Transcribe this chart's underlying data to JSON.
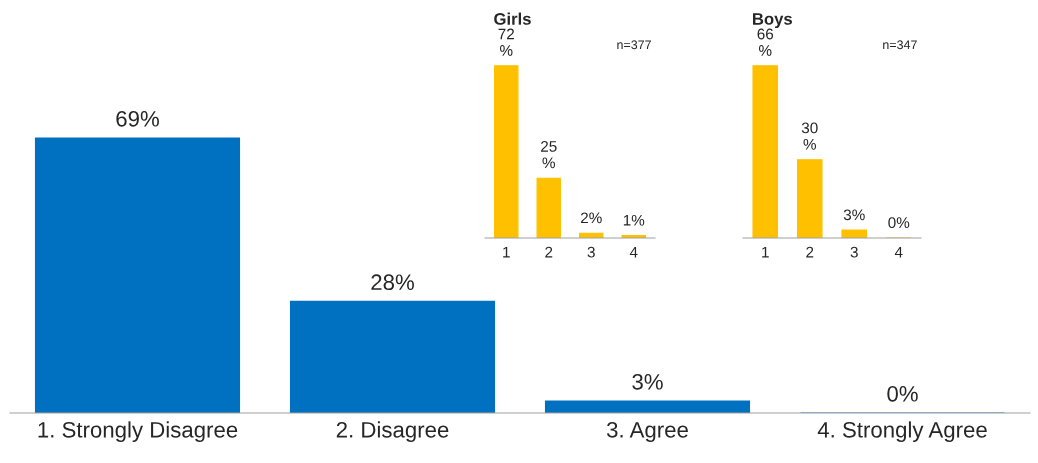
{
  "chart_data": [
    {
      "type": "bar",
      "categories": [
        "1. Strongly Disagree",
        "2. Disagree",
        "3. Agree",
        "4. Strongly Agree"
      ],
      "values": [
        69,
        28,
        3,
        0
      ],
      "value_labels": [
        "69%",
        "28%",
        "3%",
        "0%"
      ],
      "color": "#0070c0",
      "grid": false,
      "legend": false
    },
    {
      "type": "bar",
      "title": "Girls",
      "annotations": [
        "n=377"
      ],
      "categories": [
        "1",
        "2",
        "3",
        "4"
      ],
      "values": [
        72,
        25,
        2,
        1
      ],
      "value_labels": [
        "72 %",
        "25 %",
        "2%",
        "1%"
      ],
      "color": "#ffc000",
      "grid": false,
      "legend": false
    },
    {
      "type": "bar",
      "title": "Boys",
      "annotations": [
        "n=347"
      ],
      "categories": [
        "1",
        "2",
        "3",
        "4"
      ],
      "values": [
        66,
        30,
        3,
        0
      ],
      "value_labels": [
        "66 %",
        "30 %",
        "3%",
        "0%"
      ],
      "color": "#ffc000",
      "grid": false,
      "legend": false
    }
  ]
}
